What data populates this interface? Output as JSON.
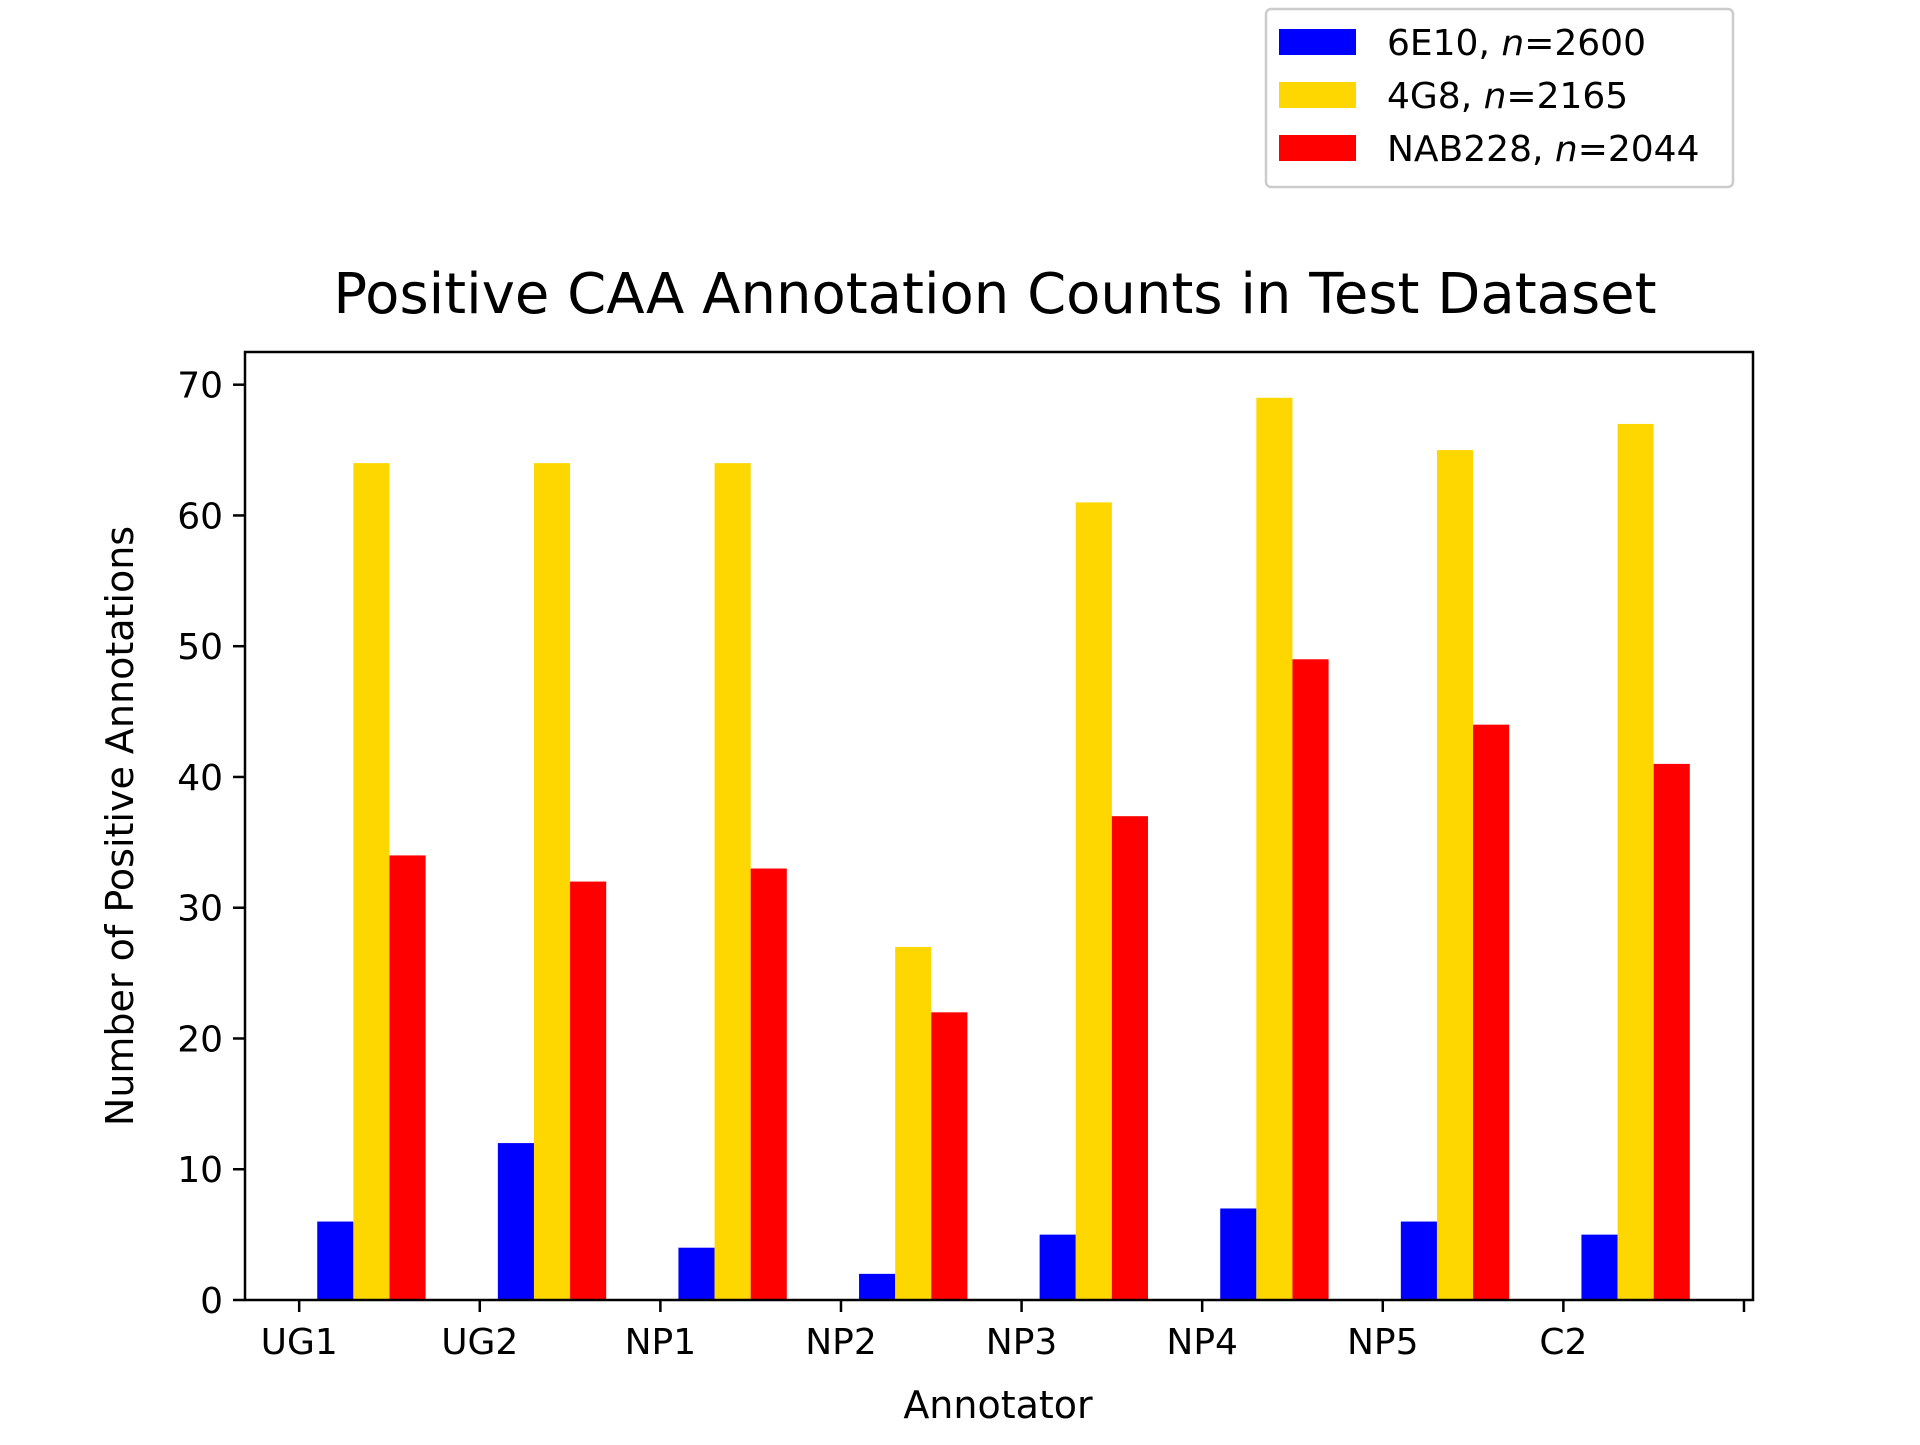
{
  "chart_data": {
    "type": "bar",
    "title": "Positive CAA Annotation Counts in Test Dataset",
    "xlabel": "Annotator",
    "ylabel": "Number of Positive Annotations",
    "categories": [
      "UG1",
      "UG2",
      "NP1",
      "NP2",
      "NP3",
      "NP4",
      "NP5",
      "C2"
    ],
    "ylim": [
      0,
      72.5
    ],
    "yticks": [
      0,
      10,
      20,
      30,
      40,
      50,
      60,
      70
    ],
    "grid": false,
    "legend_position": "top-right, above plot",
    "series": [
      {
        "name": "6E10",
        "n_label": "n",
        "n_value": "=2600",
        "color": "#0000ff",
        "values": [
          6,
          12,
          4,
          2,
          5,
          7,
          6,
          5
        ]
      },
      {
        "name": "4G8",
        "n_label": "n",
        "n_value": "=2165",
        "color": "#ffd700",
        "values": [
          64,
          64,
          64,
          27,
          61,
          69,
          65,
          67
        ]
      },
      {
        "name": "NAB228",
        "n_label": "n",
        "n_value": "=2044",
        "color": "#ff0000",
        "values": [
          34,
          32,
          33,
          22,
          37,
          49,
          44,
          41
        ]
      }
    ]
  }
}
